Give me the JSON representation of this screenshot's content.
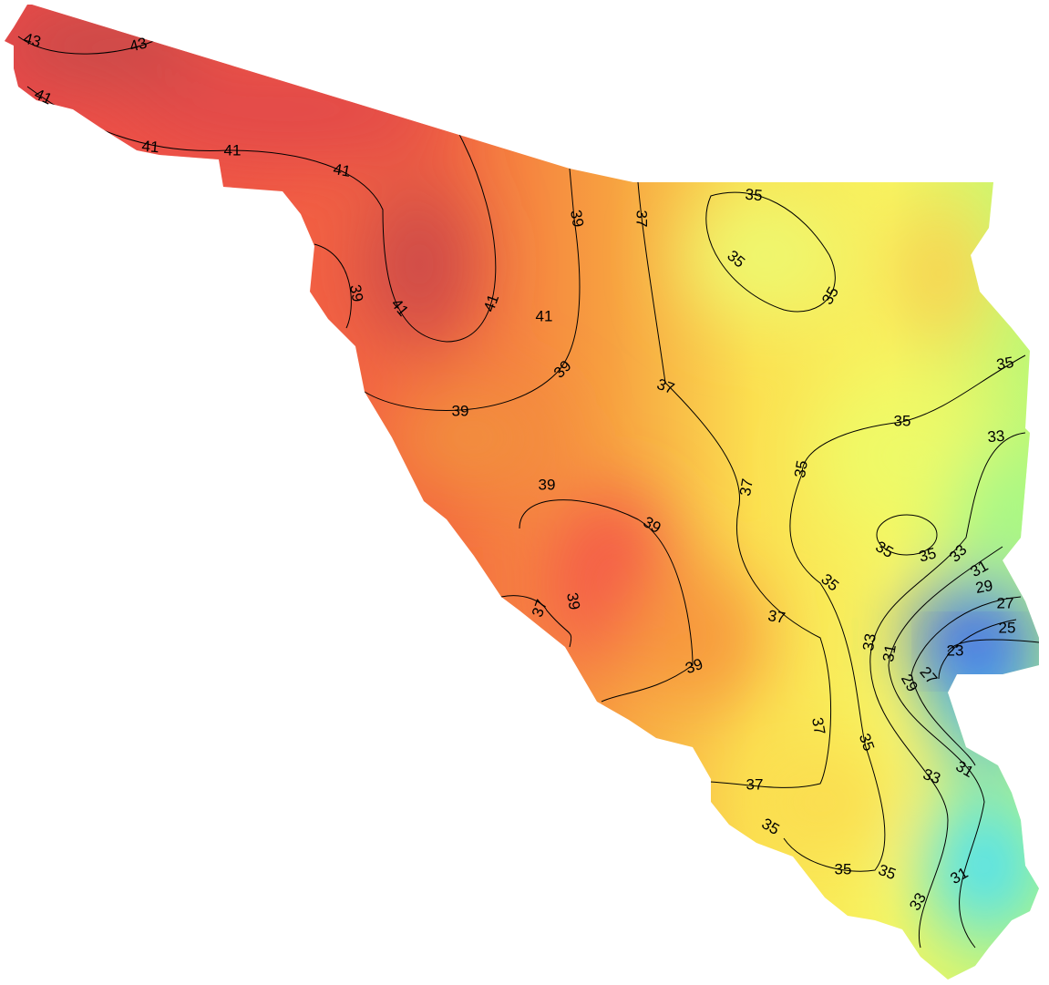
{
  "map": {
    "contour_labels": [
      43,
      43,
      41,
      41,
      41,
      41,
      39,
      37,
      35,
      35,
      35,
      39,
      41,
      41,
      41,
      39,
      37,
      35,
      39,
      35,
      33,
      35,
      37,
      39,
      39,
      35,
      35,
      33,
      31,
      35,
      29,
      39,
      37,
      27,
      37,
      25,
      33,
      31,
      23,
      39,
      27,
      29,
      37,
      35,
      31,
      33,
      37,
      35,
      35,
      35,
      31,
      33
    ]
  }
}
